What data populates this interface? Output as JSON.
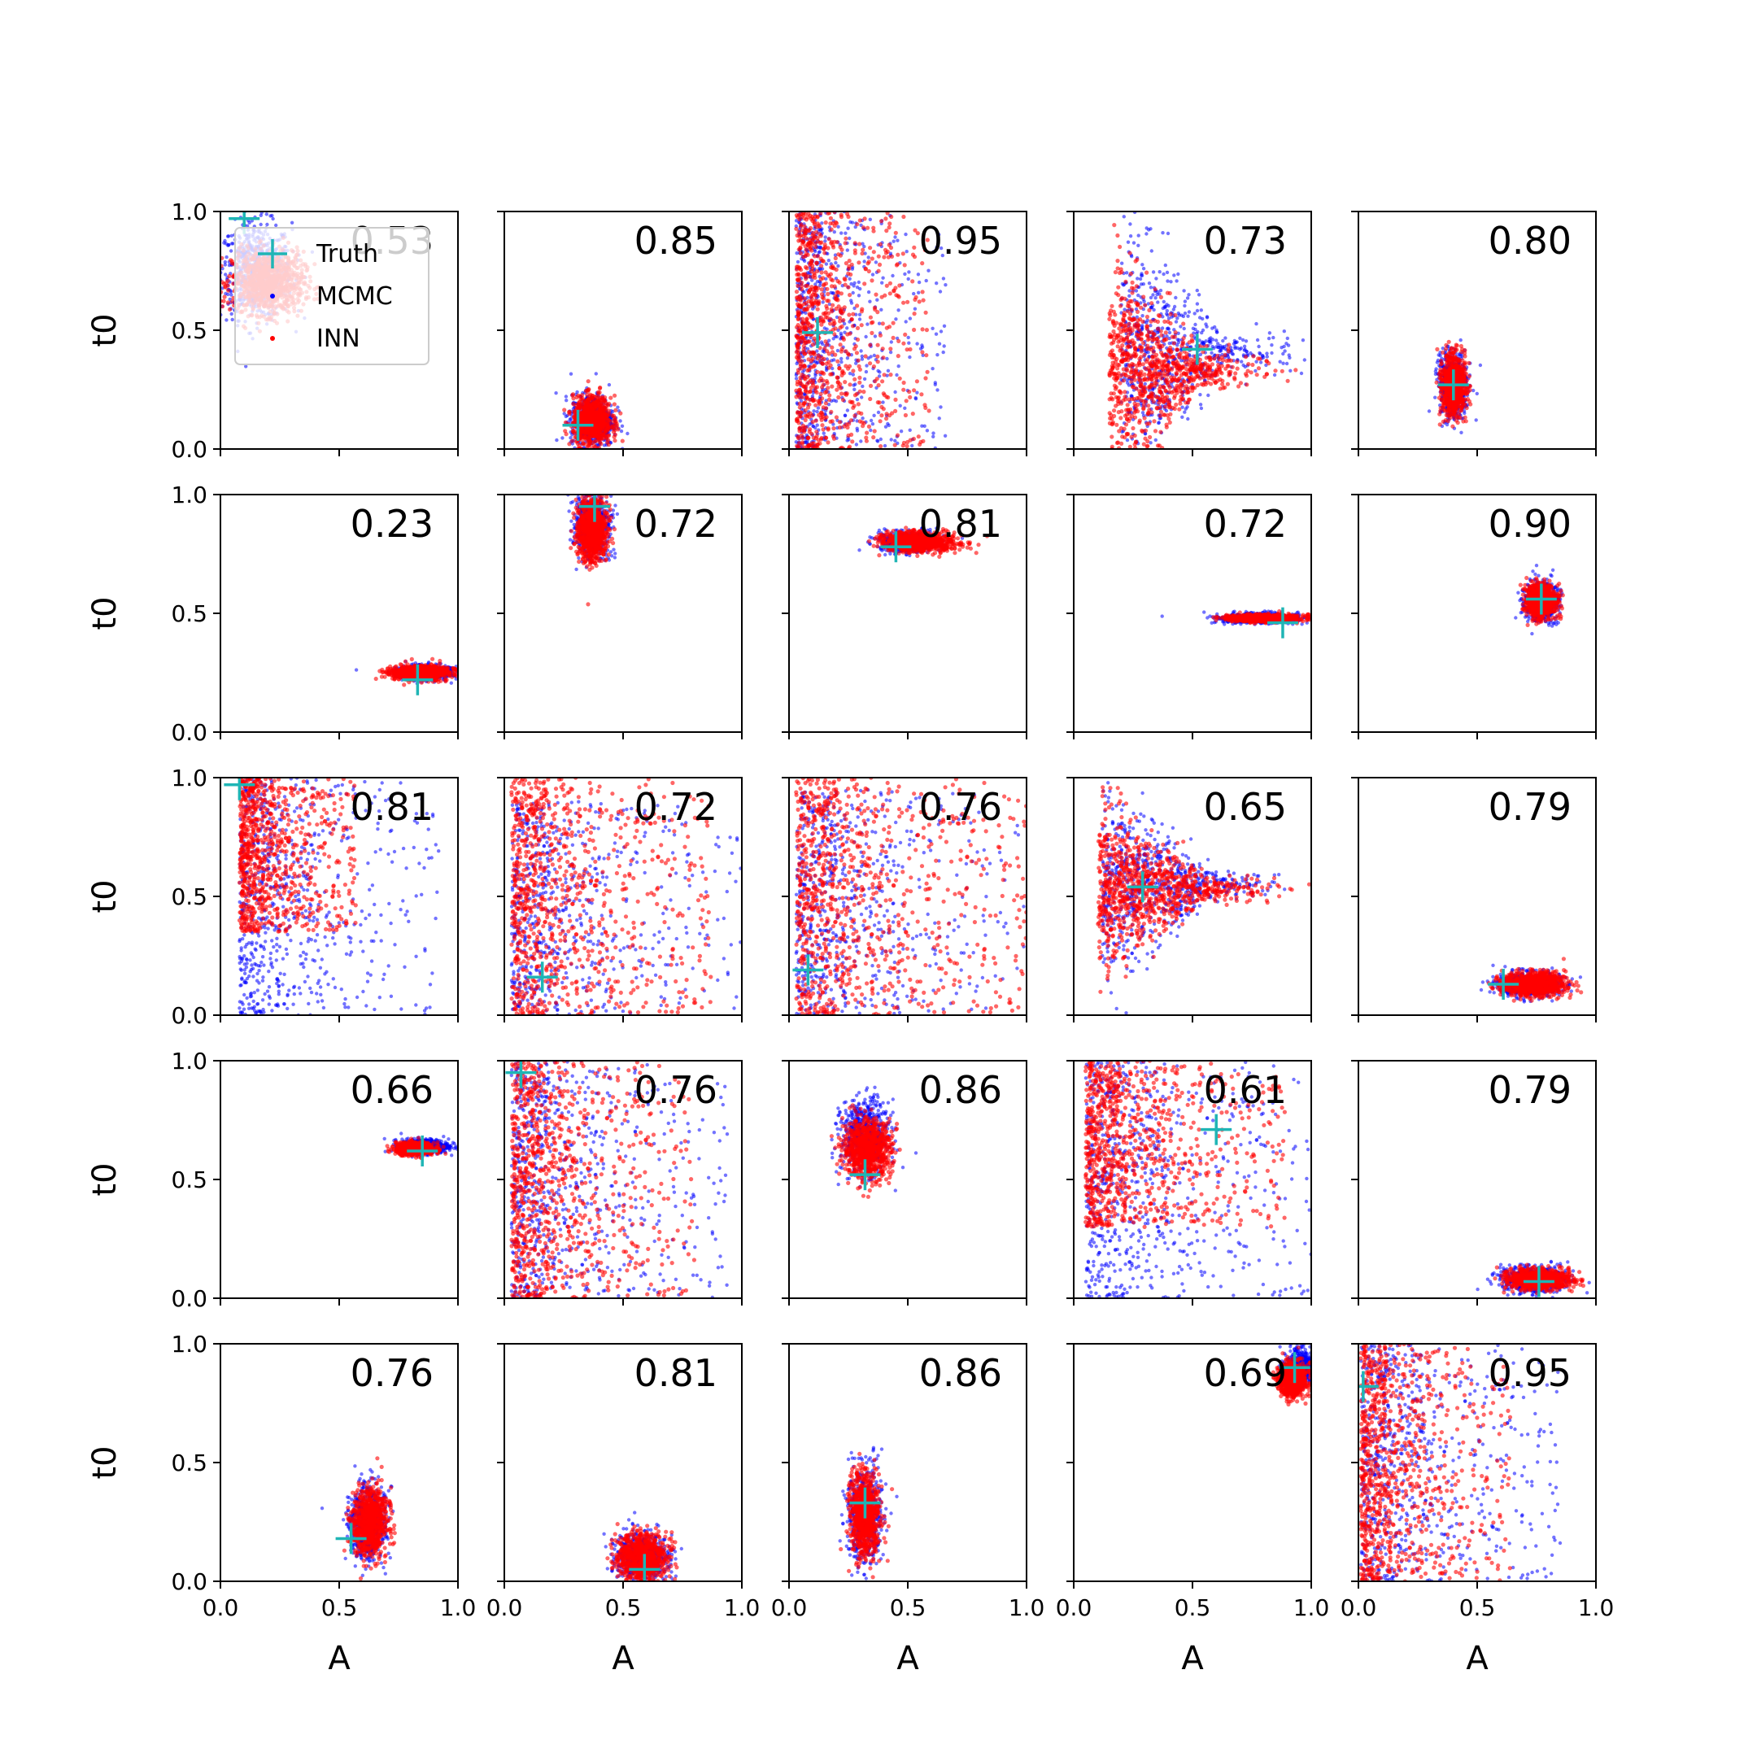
{
  "chart_data": {
    "type": "scatter",
    "layout": "5x5 grid of scatter panels",
    "xlabel": "A",
    "ylabel": "t0",
    "xlim": [
      0,
      1
    ],
    "ylim": [
      0,
      1
    ],
    "xticks": [
      "0.0",
      "0.5",
      "1.0"
    ],
    "yticks": [
      "0.0",
      "0.5",
      "1.0"
    ],
    "legend": {
      "placement": "top-left of first panel",
      "entries": [
        {
          "label": "Truth",
          "marker": "plus",
          "color": "#1fb5b5"
        },
        {
          "label": "MCMC",
          "marker": "dot",
          "color": "#0000ff"
        },
        {
          "label": "INN",
          "marker": "dot",
          "color": "#ff0000"
        }
      ]
    },
    "colors": {
      "mcmc": "#0000ff",
      "inn": "#ff0000",
      "truth": "#1fb5b5"
    },
    "panels": [
      {
        "score": "0.53",
        "truth": [
          0.1,
          0.97
        ],
        "inn": {
          "shape": "blob",
          "cx": 0.2,
          "cy": 0.7,
          "sx": 0.15,
          "sy": 0.13
        },
        "mcmc": {
          "shape": "blob",
          "cx": 0.15,
          "cy": 0.75,
          "sx": 0.15,
          "sy": 0.2
        }
      },
      {
        "score": "0.85",
        "truth": [
          0.31,
          0.1
        ],
        "inn": {
          "shape": "ellipse",
          "cx": 0.37,
          "cy": 0.12,
          "sx": 0.08,
          "sy": 0.1
        },
        "mcmc": {
          "shape": "ellipse",
          "cx": 0.37,
          "cy": 0.12,
          "sx": 0.09,
          "sy": 0.11
        }
      },
      {
        "score": "0.95",
        "truth": [
          0.12,
          0.49
        ],
        "inn": {
          "shape": "spread-left",
          "cx": 0.03,
          "cy": 0.5,
          "sx": 0.4,
          "sy": 0.5
        },
        "mcmc": {
          "shape": "spread-left",
          "cx": 0.03,
          "cy": 0.5,
          "sx": 0.45,
          "sy": 0.5
        }
      },
      {
        "score": "0.73",
        "truth": [
          0.52,
          0.42
        ],
        "inn": {
          "shape": "fan",
          "cx": 0.15,
          "cy": 0.33,
          "sx": 0.5,
          "sy": 0.25
        },
        "mcmc": {
          "shape": "fan",
          "cx": 0.2,
          "cy": 0.4,
          "sx": 0.55,
          "sy": 0.3
        }
      },
      {
        "score": "0.80",
        "truth": [
          0.4,
          0.27
        ],
        "inn": {
          "shape": "ellipse",
          "cx": 0.4,
          "cy": 0.27,
          "sx": 0.05,
          "sy": 0.12
        },
        "mcmc": {
          "shape": "ellipse",
          "cx": 0.4,
          "cy": 0.27,
          "sx": 0.06,
          "sy": 0.13
        }
      },
      {
        "score": "0.23",
        "truth": [
          0.83,
          0.22
        ],
        "inn": {
          "shape": "ellipse",
          "cx": 0.84,
          "cy": 0.25,
          "sx": 0.12,
          "sy": 0.03
        },
        "mcmc": {
          "shape": "ellipse",
          "cx": 0.86,
          "cy": 0.25,
          "sx": 0.12,
          "sy": 0.03
        }
      },
      {
        "score": "0.72",
        "truth": [
          0.38,
          0.95
        ],
        "inn": {
          "shape": "ellipse",
          "cx": 0.37,
          "cy": 0.85,
          "sx": 0.06,
          "sy": 0.13
        },
        "mcmc": {
          "shape": "ellipse",
          "cx": 0.37,
          "cy": 0.87,
          "sx": 0.07,
          "sy": 0.13
        }
      },
      {
        "score": "0.81",
        "truth": [
          0.45,
          0.78
        ],
        "inn": {
          "shape": "ellipse",
          "cx": 0.55,
          "cy": 0.8,
          "sx": 0.15,
          "sy": 0.04
        },
        "mcmc": {
          "shape": "ellipse",
          "cx": 0.5,
          "cy": 0.8,
          "sx": 0.12,
          "sy": 0.04
        }
      },
      {
        "score": "0.72",
        "truth": [
          0.88,
          0.46
        ],
        "inn": {
          "shape": "ellipse",
          "cx": 0.8,
          "cy": 0.48,
          "sx": 0.15,
          "sy": 0.015
        },
        "mcmc": {
          "shape": "ellipse",
          "cx": 0.78,
          "cy": 0.48,
          "sx": 0.17,
          "sy": 0.02
        }
      },
      {
        "score": "0.90",
        "truth": [
          0.77,
          0.56
        ],
        "inn": {
          "shape": "ellipse",
          "cx": 0.77,
          "cy": 0.55,
          "sx": 0.06,
          "sy": 0.07
        },
        "mcmc": {
          "shape": "ellipse",
          "cx": 0.77,
          "cy": 0.55,
          "sx": 0.07,
          "sy": 0.08
        }
      },
      {
        "score": "0.81",
        "truth": [
          0.08,
          0.97
        ],
        "inn": {
          "shape": "spread-left",
          "cx": 0.08,
          "cy": 0.7,
          "sx": 0.35,
          "sy": 0.35
        },
        "mcmc": {
          "shape": "spread-left",
          "cx": 0.08,
          "cy": 0.5,
          "sx": 0.6,
          "sy": 0.5
        }
      },
      {
        "score": "0.72",
        "truth": [
          0.16,
          0.16
        ],
        "inn": {
          "shape": "spread-left",
          "cx": 0.03,
          "cy": 0.5,
          "sx": 0.6,
          "sy": 0.5
        },
        "mcmc": {
          "shape": "spread-left",
          "cx": 0.03,
          "cy": 0.4,
          "sx": 0.7,
          "sy": 0.5
        }
      },
      {
        "score": "0.76",
        "truth": [
          0.08,
          0.19
        ],
        "inn": {
          "shape": "spread-left",
          "cx": 0.03,
          "cy": 0.5,
          "sx": 0.7,
          "sy": 0.5
        },
        "mcmc": {
          "shape": "spread-left",
          "cx": 0.03,
          "cy": 0.45,
          "sx": 0.75,
          "sy": 0.5
        }
      },
      {
        "score": "0.65",
        "truth": [
          0.29,
          0.54
        ],
        "inn": {
          "shape": "fan",
          "cx": 0.1,
          "cy": 0.53,
          "sx": 0.6,
          "sy": 0.18
        },
        "mcmc": {
          "shape": "fan",
          "cx": 0.12,
          "cy": 0.55,
          "sx": 0.6,
          "sy": 0.2
        }
      },
      {
        "score": "0.79",
        "truth": [
          0.61,
          0.13
        ],
        "inn": {
          "shape": "ellipse",
          "cx": 0.74,
          "cy": 0.13,
          "sx": 0.13,
          "sy": 0.05
        },
        "mcmc": {
          "shape": "ellipse",
          "cx": 0.72,
          "cy": 0.13,
          "sx": 0.13,
          "sy": 0.05
        }
      },
      {
        "score": "0.66",
        "truth": [
          0.85,
          0.62
        ],
        "inn": {
          "shape": "ellipse",
          "cx": 0.82,
          "cy": 0.63,
          "sx": 0.08,
          "sy": 0.025
        },
        "mcmc": {
          "shape": "ellipse",
          "cx": 0.86,
          "cy": 0.64,
          "sx": 0.1,
          "sy": 0.03
        }
      },
      {
        "score": "0.76",
        "truth": [
          0.07,
          0.95
        ],
        "inn": {
          "shape": "spread-left",
          "cx": 0.03,
          "cy": 0.5,
          "sx": 0.55,
          "sy": 0.5
        },
        "mcmc": {
          "shape": "spread-left",
          "cx": 0.03,
          "cy": 0.5,
          "sx": 0.65,
          "sy": 0.5
        }
      },
      {
        "score": "0.86",
        "truth": [
          0.32,
          0.52
        ],
        "inn": {
          "shape": "ellipse",
          "cx": 0.33,
          "cy": 0.63,
          "sx": 0.1,
          "sy": 0.12
        },
        "mcmc": {
          "shape": "ellipse",
          "cx": 0.32,
          "cy": 0.68,
          "sx": 0.1,
          "sy": 0.15
        }
      },
      {
        "score": "0.61",
        "truth": [
          0.6,
          0.71
        ],
        "inn": {
          "shape": "spread-left",
          "cx": 0.05,
          "cy": 0.65,
          "sx": 0.6,
          "sy": 0.35
        },
        "mcmc": {
          "shape": "spread-left",
          "cx": 0.05,
          "cy": 0.5,
          "sx": 0.7,
          "sy": 0.5
        }
      },
      {
        "score": "0.79",
        "truth": [
          0.76,
          0.07
        ],
        "inn": {
          "shape": "ellipse",
          "cx": 0.76,
          "cy": 0.08,
          "sx": 0.13,
          "sy": 0.04
        },
        "mcmc": {
          "shape": "ellipse",
          "cx": 0.74,
          "cy": 0.08,
          "sx": 0.14,
          "sy": 0.05
        }
      },
      {
        "score": "0.76",
        "truth": [
          0.55,
          0.18
        ],
        "inn": {
          "shape": "ellipse",
          "cx": 0.63,
          "cy": 0.25,
          "sx": 0.07,
          "sy": 0.14
        },
        "mcmc": {
          "shape": "ellipse",
          "cx": 0.62,
          "cy": 0.25,
          "sx": 0.08,
          "sy": 0.15
        }
      },
      {
        "score": "0.81",
        "truth": [
          0.59,
          0.05
        ],
        "inn": {
          "shape": "ellipse",
          "cx": 0.58,
          "cy": 0.1,
          "sx": 0.1,
          "sy": 0.1
        },
        "mcmc": {
          "shape": "ellipse",
          "cx": 0.58,
          "cy": 0.1,
          "sx": 0.11,
          "sy": 0.1
        }
      },
      {
        "score": "0.86",
        "truth": [
          0.32,
          0.33
        ],
        "inn": {
          "shape": "ellipse",
          "cx": 0.32,
          "cy": 0.28,
          "sx": 0.06,
          "sy": 0.17
        },
        "mcmc": {
          "shape": "ellipse",
          "cx": 0.32,
          "cy": 0.28,
          "sx": 0.07,
          "sy": 0.19
        }
      },
      {
        "score": "0.69",
        "truth": [
          0.93,
          0.9
        ],
        "inn": {
          "shape": "ellipse",
          "cx": 0.92,
          "cy": 0.85,
          "sx": 0.06,
          "sy": 0.07
        },
        "mcmc": {
          "shape": "ellipse",
          "cx": 0.95,
          "cy": 0.9,
          "sx": 0.06,
          "sy": 0.07
        }
      },
      {
        "score": "0.95",
        "truth": [
          0.02,
          0.82
        ],
        "inn": {
          "shape": "spread-left",
          "cx": 0.01,
          "cy": 0.5,
          "sx": 0.45,
          "sy": 0.5
        },
        "mcmc": {
          "shape": "spread-left",
          "cx": 0.01,
          "cy": 0.5,
          "sx": 0.6,
          "sy": 0.5
        }
      }
    ]
  }
}
